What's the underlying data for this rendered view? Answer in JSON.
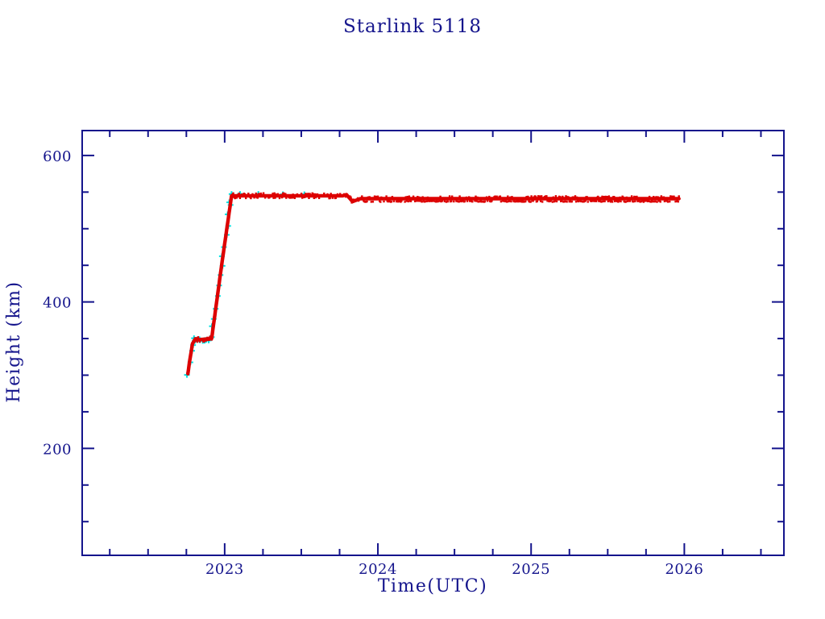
{
  "chart_data": {
    "type": "scatter",
    "title": "Starlink 5118",
    "xlabel": "Time(UTC)",
    "ylabel": "Height (km)",
    "xlim": [
      2022.07,
      2026.65
    ],
    "ylim": [
      54,
      634
    ],
    "x_major_ticks": [
      2023,
      2024,
      2025,
      2026
    ],
    "x_tick_labels": [
      "2023",
      "2024",
      "2025",
      "2026"
    ],
    "x_minor_step": 0.25,
    "y_major_ticks": [
      200,
      400,
      600
    ],
    "y_tick_labels": [
      "200",
      "400",
      "600"
    ],
    "y_minor_step": 50,
    "y_minor_range": [
      100,
      600
    ],
    "grid": false,
    "legend": null,
    "background_color": "#FFFFFF",
    "axis_color": "#14148C",
    "series": [
      {
        "name": "height-secondary-track",
        "color": "#00E1E1",
        "marker": "plus",
        "keypoints": [
          [
            2022.76,
            302
          ],
          [
            2022.772,
            320
          ],
          [
            2022.79,
            343
          ],
          [
            2022.805,
            348
          ],
          [
            2022.915,
            350
          ],
          [
            2022.98,
            450
          ],
          [
            2023.045,
            545
          ]
        ],
        "extra_points": [
          [
            2023.03,
            536
          ],
          [
            2023.1,
            547.5
          ],
          [
            2023.22,
            547.5
          ],
          [
            2023.38,
            547.0
          ],
          [
            2023.52,
            547.0
          ]
        ]
      },
      {
        "name": "height-tracked",
        "color": "#DD0000",
        "marker": "square",
        "keypoints": [
          [
            2022.76,
            302
          ],
          [
            2022.772,
            320
          ],
          [
            2022.79,
            343
          ],
          [
            2022.805,
            348
          ],
          [
            2022.915,
            350
          ],
          [
            2022.98,
            450
          ],
          [
            2023.045,
            545
          ],
          [
            2023.77,
            545
          ],
          [
            2023.795,
            546.5
          ],
          [
            2023.835,
            537
          ],
          [
            2023.885,
            541
          ],
          [
            2025.965,
            541
          ]
        ]
      }
    ]
  }
}
